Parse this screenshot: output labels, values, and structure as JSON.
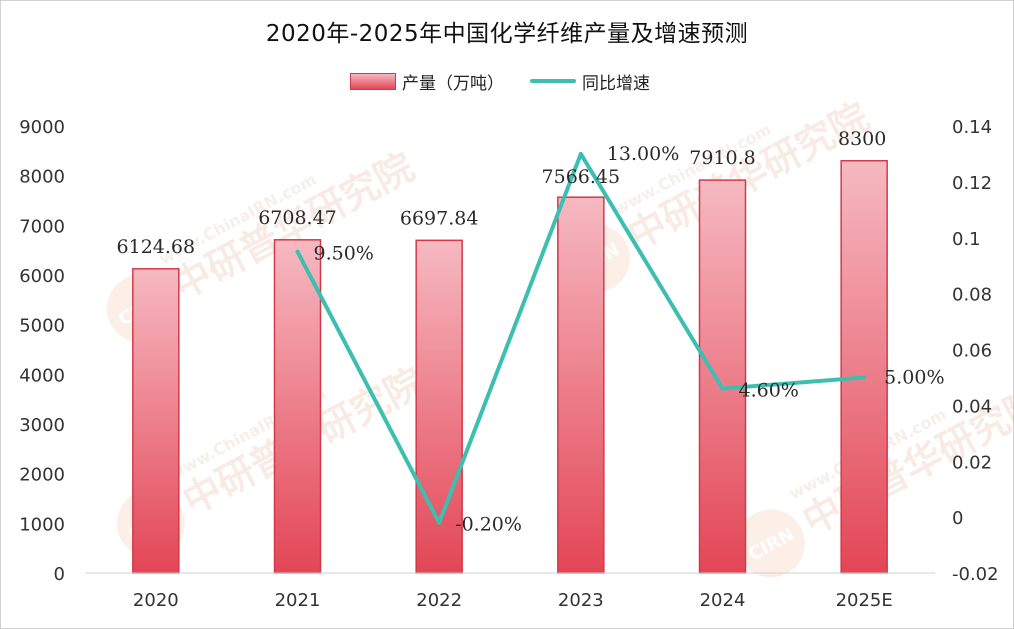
{
  "title": "2020年-2025年中国化学纤维产量及增速预测",
  "legend": {
    "bar_label": "产量（万吨）",
    "line_label": "同比增速"
  },
  "watermark": {
    "text": "中研普华研究院",
    "url": "www.ChinaIRN.com",
    "logo": "CIRN"
  },
  "colors": {
    "bar_top": "#f6b9c1",
    "bar_bottom": "#e34656",
    "bar_border": "#d23a4a",
    "line": "#3cbfb0"
  },
  "chart_data": {
    "type": "bar",
    "categories": [
      "2020",
      "2021",
      "2022",
      "2023",
      "2024",
      "2025E"
    ],
    "series": [
      {
        "name": "产量（万吨）",
        "type": "bar",
        "axis": "left",
        "values": [
          6124.68,
          6708.47,
          6697.84,
          7566.45,
          7910.8,
          8300
        ],
        "labels": [
          "6124.68",
          "6708.47",
          "6697.84",
          "7566.45",
          "7910.8",
          "8300"
        ]
      },
      {
        "name": "同比增速",
        "type": "line",
        "axis": "right",
        "values": [
          null,
          0.095,
          -0.002,
          0.13,
          0.046,
          0.05
        ],
        "labels": [
          "",
          "9.50%",
          "-0.20%",
          "13.00%",
          "4.60%",
          "5.00%"
        ]
      }
    ],
    "y_left": {
      "min": 0,
      "max": 9000,
      "ticks": [
        "0",
        "1000",
        "2000",
        "3000",
        "4000",
        "5000",
        "6000",
        "7000",
        "8000",
        "9000"
      ]
    },
    "y_right": {
      "min": -0.02,
      "max": 0.14,
      "ticks": [
        "-0.02",
        "0",
        "0.02",
        "0.04",
        "0.06",
        "0.08",
        "0.1",
        "0.12",
        "0.14"
      ]
    },
    "grid": false,
    "legend_position": "top"
  }
}
